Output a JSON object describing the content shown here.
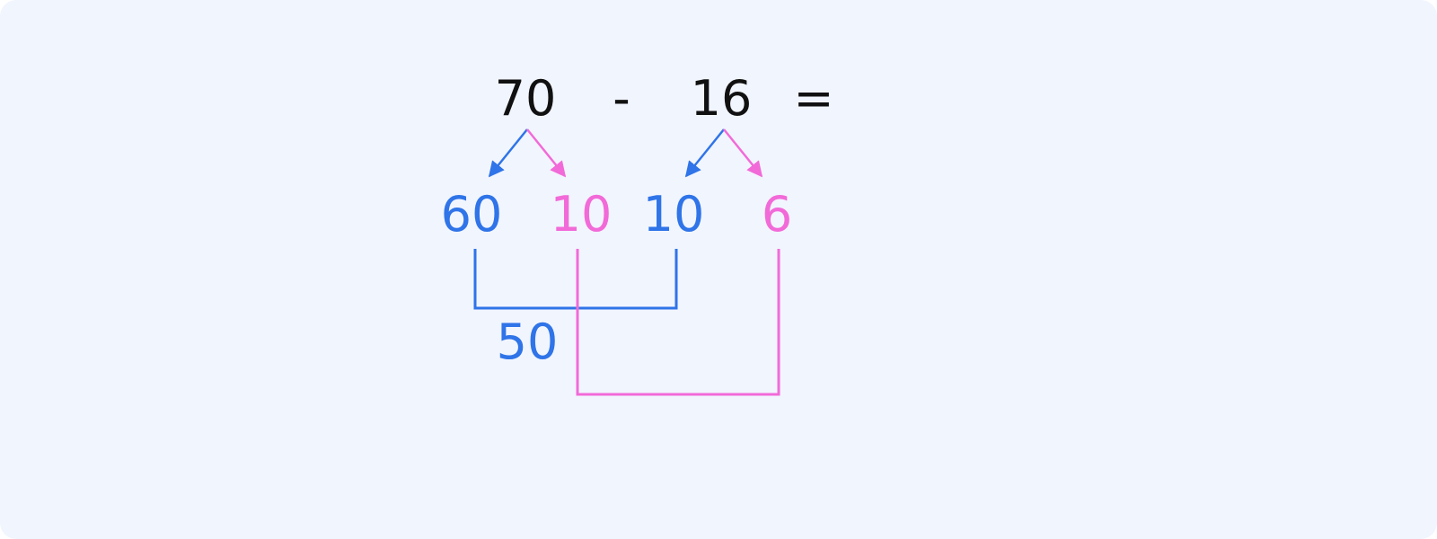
{
  "equation": {
    "first": "70",
    "operator": "-",
    "second": "16",
    "equals": "="
  },
  "split_first": {
    "tens": "60",
    "ones": "10"
  },
  "split_second": {
    "tens": "10",
    "ones": "6"
  },
  "results": {
    "tens_result": "50"
  },
  "colors": {
    "text": "#111111",
    "blue": "#2f74e8",
    "pink": "#f26ad8",
    "background": "#f1f5fe"
  }
}
